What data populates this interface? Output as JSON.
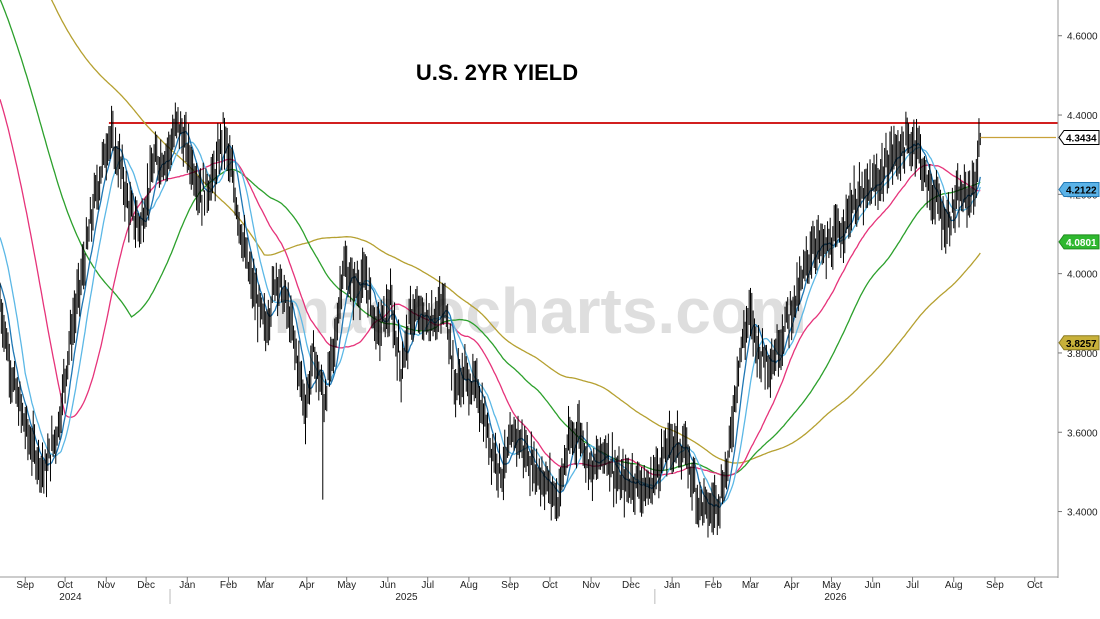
{
  "chart_data": {
    "type": "line",
    "title": "U.S. 2YR YIELD",
    "watermark": "macrocharts.com",
    "y_axis": {
      "range": [
        3.24,
        4.68
      ],
      "ticks": [
        "4.6000",
        "4.4000",
        "4.2000",
        "4.0000",
        "3.8000",
        "3.6000",
        "3.4000"
      ],
      "position": "right"
    },
    "x_axis": {
      "months": [
        {
          "label": "Sep",
          "d": 19
        },
        {
          "label": "Oct",
          "d": 49
        },
        {
          "label": "Nov",
          "d": 80
        },
        {
          "label": "Dec",
          "d": 110
        },
        {
          "label": "Jan",
          "d": 141
        },
        {
          "label": "Feb",
          "d": 172
        },
        {
          "label": "Mar",
          "d": 200
        },
        {
          "label": "Apr",
          "d": 231
        },
        {
          "label": "May",
          "d": 261
        },
        {
          "label": "Jun",
          "d": 292
        },
        {
          "label": "Jul",
          "d": 322
        },
        {
          "label": "Aug",
          "d": 353
        },
        {
          "label": "Sep",
          "d": 384
        },
        {
          "label": "Oct",
          "d": 414
        },
        {
          "label": "Nov",
          "d": 445
        },
        {
          "label": "Dec",
          "d": 475
        },
        {
          "label": "Jan",
          "d": 506
        },
        {
          "label": "Feb",
          "d": 537
        },
        {
          "label": "Mar",
          "d": 565
        },
        {
          "label": "Apr",
          "d": 596
        },
        {
          "label": "May",
          "d": 626
        },
        {
          "label": "Jun",
          "d": 657
        },
        {
          "label": "Jul",
          "d": 687
        },
        {
          "label": "Aug",
          "d": 718
        },
        {
          "label": "Sep",
          "d": 749
        },
        {
          "label": "Oct",
          "d": 779
        }
      ],
      "years": [
        {
          "label": "2024",
          "d": 53
        },
        {
          "label": "2025",
          "d": 306
        },
        {
          "label": "2026",
          "d": 629
        }
      ],
      "day_range": [
        0,
        795
      ]
    },
    "horizontal_line": {
      "value": 4.38,
      "color": "#d21f1f",
      "start_d": 82
    },
    "last_value": {
      "value": 4.3434,
      "label": "4.3434",
      "color": "#c8a13a",
      "start_d": 738
    },
    "series_colors": {
      "price": "#000000",
      "ma_fast_1": "#1f77b4",
      "ma_fast_2": "#5cb8e6",
      "ma_mid": "#e6337a",
      "ma_slow": "#2ca02c",
      "ma_long": "#b5a030"
    },
    "badges": [
      {
        "label": "4.3434",
        "value": 4.3434,
        "bg": "#ffffff",
        "fg": "#000000",
        "border": "#000000"
      },
      {
        "label": "4.2122",
        "value": 4.2122,
        "bg": "#5bb3e8",
        "fg": "#000000",
        "border": "#1f77b4"
      },
      {
        "label": "4.0801",
        "value": 4.0801,
        "bg": "#2fb82f",
        "fg": "#ffffff",
        "border": "#1e8a1e"
      },
      {
        "label": "3.8257",
        "value": 3.8257,
        "bg": "#c8b13a",
        "fg": "#000000",
        "border": "#8a7a20"
      }
    ],
    "price_anchors": [
      [
        0,
        3.93
      ],
      [
        10,
        3.72
      ],
      [
        22,
        3.58
      ],
      [
        34,
        3.5
      ],
      [
        44,
        3.62
      ],
      [
        52,
        3.82
      ],
      [
        62,
        4.0
      ],
      [
        72,
        4.2
      ],
      [
        82,
        4.35
      ],
      [
        90,
        4.28
      ],
      [
        98,
        4.15
      ],
      [
        106,
        4.12
      ],
      [
        116,
        4.28
      ],
      [
        126,
        4.3
      ],
      [
        134,
        4.38
      ],
      [
        142,
        4.3
      ],
      [
        152,
        4.2
      ],
      [
        162,
        4.25
      ],
      [
        168,
        4.36
      ],
      [
        176,
        4.22
      ],
      [
        186,
        4.02
      ],
      [
        194,
        3.92
      ],
      [
        200,
        3.86
      ],
      [
        208,
        4.0
      ],
      [
        216,
        3.92
      ],
      [
        224,
        3.78
      ],
      [
        230,
        3.66
      ],
      [
        236,
        3.8
      ],
      [
        244,
        3.68
      ],
      [
        252,
        3.82
      ],
      [
        258,
        4.02
      ],
      [
        266,
        3.97
      ],
      [
        276,
        3.98
      ],
      [
        284,
        3.85
      ],
      [
        294,
        3.92
      ],
      [
        302,
        3.76
      ],
      [
        310,
        3.9
      ],
      [
        322,
        3.88
      ],
      [
        336,
        3.92
      ],
      [
        342,
        3.72
      ],
      [
        350,
        3.74
      ],
      [
        360,
        3.7
      ],
      [
        368,
        3.58
      ],
      [
        378,
        3.5
      ],
      [
        388,
        3.6
      ],
      [
        400,
        3.52
      ],
      [
        410,
        3.48
      ],
      [
        420,
        3.43
      ],
      [
        428,
        3.57
      ],
      [
        436,
        3.61
      ],
      [
        446,
        3.5
      ],
      [
        456,
        3.56
      ],
      [
        466,
        3.47
      ],
      [
        478,
        3.48
      ],
      [
        488,
        3.45
      ],
      [
        496,
        3.52
      ],
      [
        506,
        3.58
      ],
      [
        516,
        3.55
      ],
      [
        526,
        3.43
      ],
      [
        534,
        3.4
      ],
      [
        542,
        3.44
      ],
      [
        548,
        3.52
      ],
      [
        556,
        3.78
      ],
      [
        564,
        3.9
      ],
      [
        572,
        3.8
      ],
      [
        582,
        3.78
      ],
      [
        592,
        3.88
      ],
      [
        602,
        3.96
      ],
      [
        612,
        4.08
      ],
      [
        622,
        4.06
      ],
      [
        632,
        4.1
      ],
      [
        642,
        4.18
      ],
      [
        652,
        4.2
      ],
      [
        662,
        4.24
      ],
      [
        672,
        4.3
      ],
      [
        682,
        4.32
      ],
      [
        690,
        4.34
      ],
      [
        698,
        4.22
      ],
      [
        706,
        4.18
      ],
      [
        712,
        4.12
      ],
      [
        720,
        4.18
      ],
      [
        728,
        4.2
      ],
      [
        734,
        4.22
      ],
      [
        738,
        4.34
      ]
    ]
  }
}
